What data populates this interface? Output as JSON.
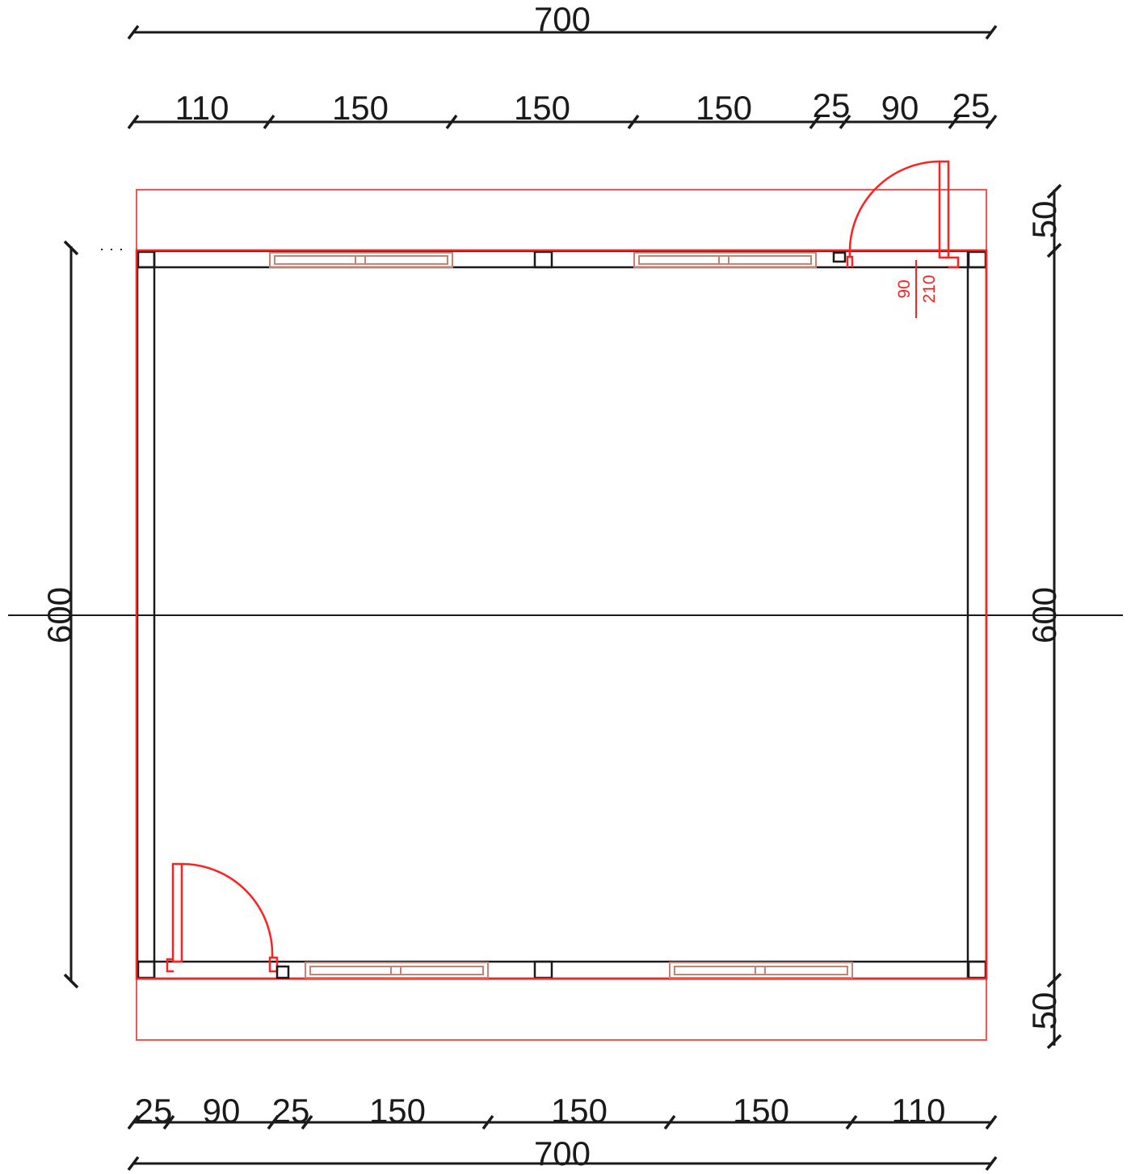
{
  "top": {
    "overall": "700",
    "segments": [
      "110",
      "150",
      "150",
      "150",
      "25",
      "90",
      "25"
    ]
  },
  "bottom": {
    "overall": "700",
    "segments": [
      "25",
      "90",
      "25",
      "150",
      "150",
      "150",
      "110"
    ]
  },
  "left": {
    "overall": "600"
  },
  "right": {
    "overall": "600",
    "top_offset": "50",
    "bottom_offset": "50"
  },
  "door_tag": {
    "width": "90",
    "height": "210"
  },
  "colors": {
    "dimension": "#1a1a1a",
    "wall": "#1a1a1a",
    "door": "#ff2020",
    "window": "#c88070"
  }
}
